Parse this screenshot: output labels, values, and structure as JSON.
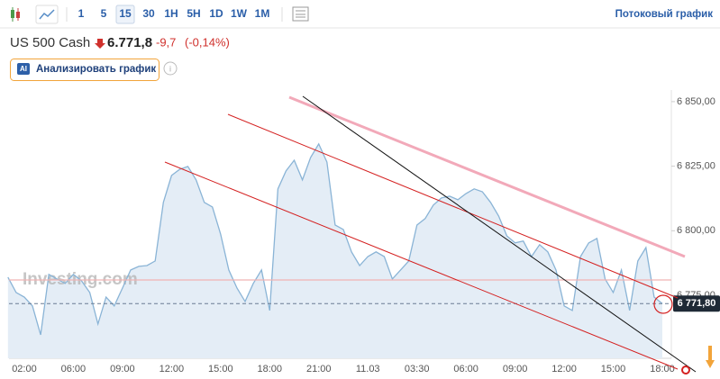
{
  "toolbar": {
    "intervals": [
      "1",
      "5",
      "15",
      "30",
      "1H",
      "5H",
      "1D",
      "1W",
      "1M"
    ],
    "streaming_link": "Потоковый график"
  },
  "header": {
    "instrument": "US 500 Cash",
    "price": "6.771,8",
    "change": "-9,7",
    "change_pct": "(-0,14%)",
    "analyze_button": "Анализировать график"
  },
  "chart_data": {
    "type": "area",
    "watermark": "Investing.com",
    "categories": [
      null,
      null,
      "02:00",
      null,
      null,
      null,
      null,
      null,
      "06:00",
      null,
      null,
      null,
      null,
      null,
      "09:00",
      null,
      null,
      null,
      null,
      null,
      "12:00",
      null,
      null,
      null,
      null,
      null,
      "15:00",
      null,
      null,
      null,
      null,
      null,
      "18:00",
      null,
      null,
      null,
      null,
      null,
      "21:00",
      null,
      null,
      null,
      null,
      null,
      "11.03",
      null,
      null,
      null,
      null,
      null,
      "03:30",
      null,
      null,
      null,
      null,
      null,
      "06:00",
      null,
      null,
      null,
      null,
      null,
      "09:00",
      null,
      null,
      null,
      null,
      null,
      "12:00",
      null,
      null,
      null,
      null,
      null,
      "15:00",
      null,
      null,
      null,
      null,
      null,
      "18:00"
    ],
    "series": [
      {
        "color": "#8ab4d6",
        "values": [
          6782.0,
          6776.1,
          6774.3,
          6770.9,
          6759.7,
          6783.1,
          6781.3,
          6779.6,
          6783.1,
          6780.6,
          6776.1,
          6763.9,
          6774.3,
          6770.9,
          6777.8,
          6784.8,
          6786.2,
          6786.5,
          6788.3,
          6811.0,
          6821.4,
          6823.8,
          6824.9,
          6819.7,
          6811.0,
          6809.2,
          6798.7,
          6784.8,
          6777.8,
          6772.6,
          6779.6,
          6784.8,
          6769.1,
          6816.2,
          6823.2,
          6827.3,
          6819.7,
          6828.4,
          6833.6,
          6826.6,
          6802.2,
          6800.5,
          6791.8,
          6786.5,
          6790.0,
          6791.8,
          6790.0,
          6781.3,
          6784.8,
          6788.3,
          6802.2,
          6804.7,
          6809.9,
          6812.7,
          6813.4,
          6812.0,
          6814.4,
          6816.2,
          6815.1,
          6811.0,
          6805.7,
          6798.0,
          6795.3,
          6796.0,
          6790.0,
          6794.6,
          6791.8,
          6784.8,
          6770.9,
          6769.1,
          6790.0,
          6795.3,
          6797.0,
          6781.3,
          6776.1,
          6784.8,
          6769.1,
          6788.3,
          6793.5,
          6774.3,
          6771.8
        ]
      }
    ],
    "ylim": [
      6750.6,
      6854.5
    ],
    "yticks": [
      {
        "value": 6775,
        "label": "6 775,00"
      },
      {
        "value": 6800,
        "label": "6 800,00"
      },
      {
        "value": 6825,
        "label": "6 825,00"
      },
      {
        "value": 6850,
        "label": "6 850,00"
      }
    ],
    "last_price": {
      "value": 6771.8,
      "label": "6 771,80"
    },
    "grid": false
  }
}
